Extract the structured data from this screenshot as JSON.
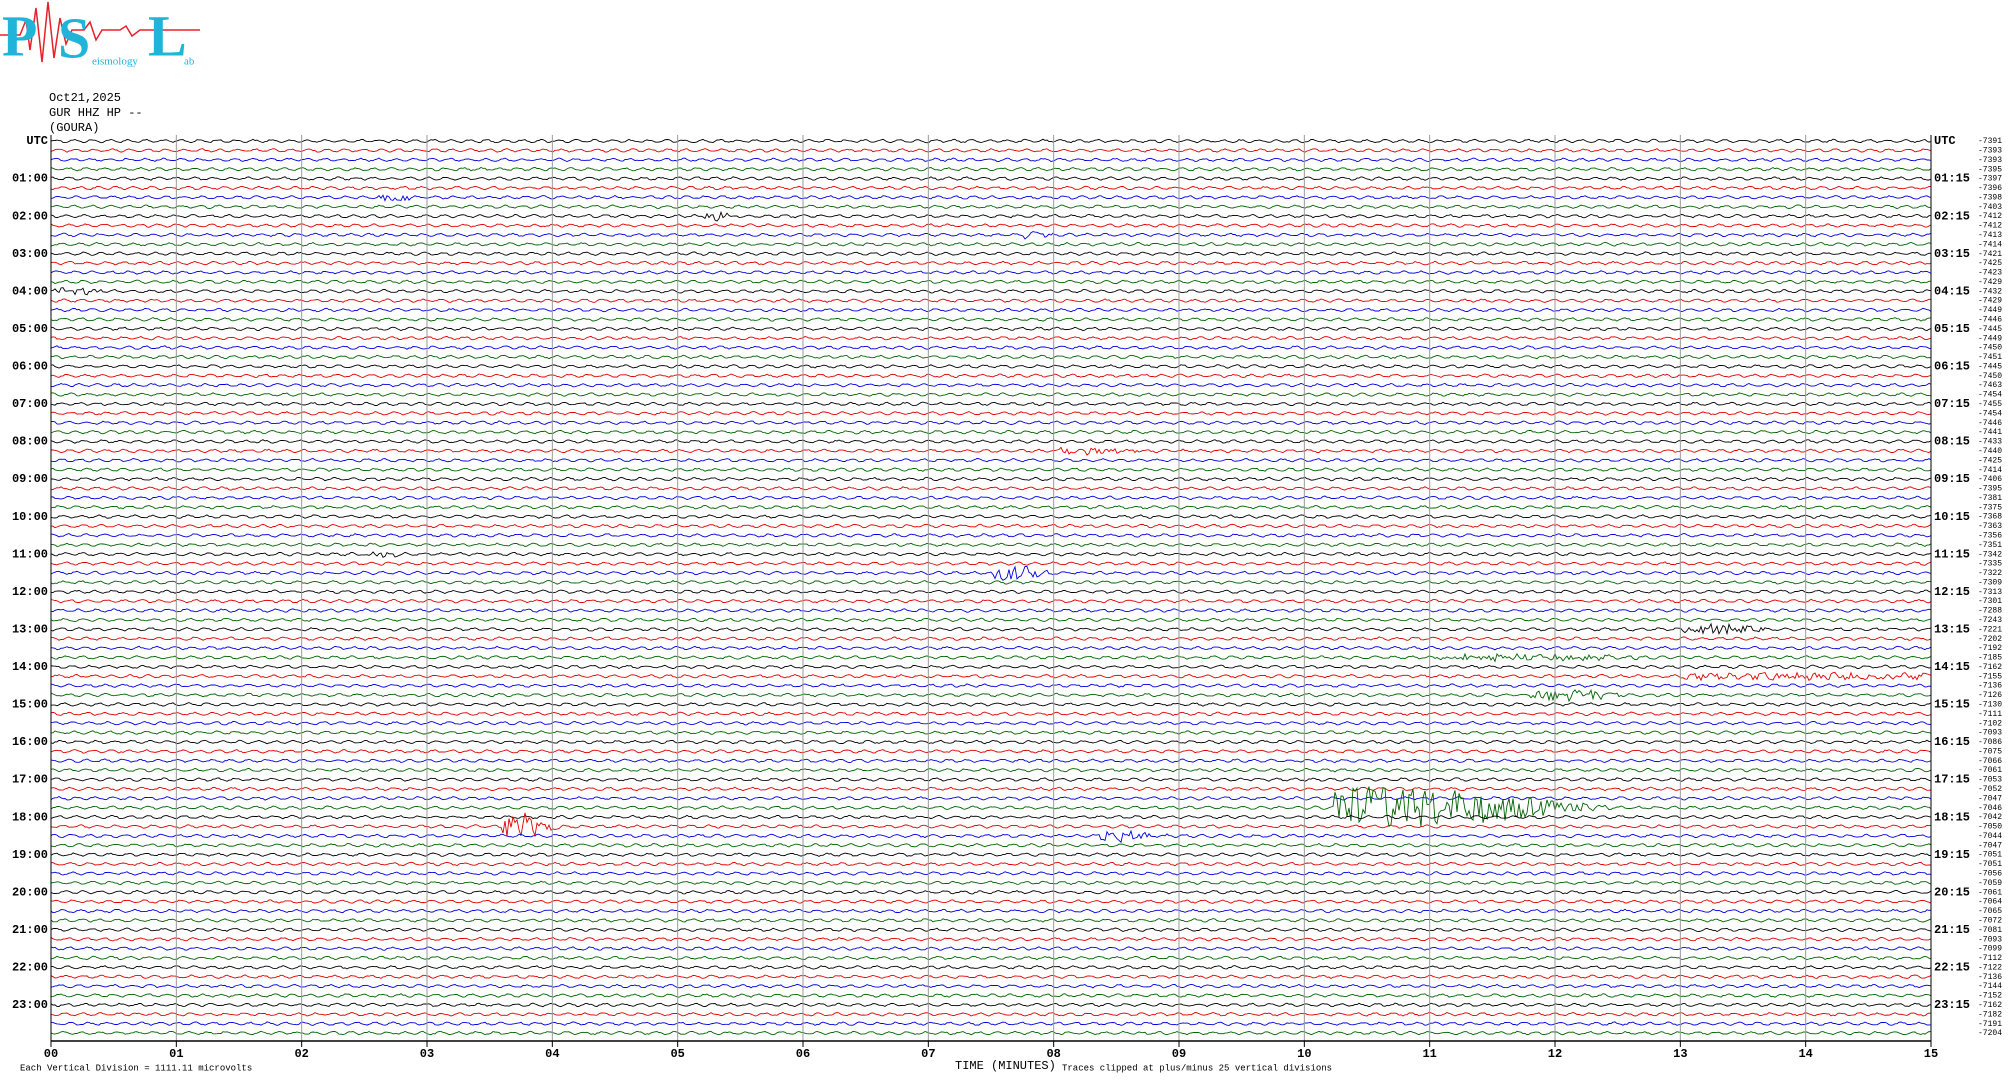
{
  "logo": {
    "letters": [
      "P",
      "S",
      "L"
    ],
    "small": [
      "eismology",
      "ab"
    ]
  },
  "chart_data": {
    "type": "helicorder",
    "date": "Oct21,2025",
    "station": "GUR HHZ HP --",
    "location": "(GOURA)",
    "xlabel": "TIME (MINUTES)",
    "scale_note": "Each Vertical Division = 1111.11 microvolts",
    "clip_note": "Traces clipped at plus/minus 25 vertical divisions",
    "xlim": [
      0,
      15
    ],
    "xticks": [
      {
        "value": 0,
        "label": "00"
      },
      {
        "value": 1,
        "label": "01"
      },
      {
        "value": 2,
        "label": "02"
      },
      {
        "value": 3,
        "label": "03"
      },
      {
        "value": 4,
        "label": "04"
      },
      {
        "value": 5,
        "label": "05"
      },
      {
        "value": 6,
        "label": "06"
      },
      {
        "value": 7,
        "label": "07"
      },
      {
        "value": 8,
        "label": "08"
      },
      {
        "value": 9,
        "label": "09"
      },
      10,
      11,
      12,
      13,
      14,
      15
    ],
    "grid": true,
    "colors": [
      "#000000",
      "#e00000",
      "#0000e0",
      "#006400"
    ],
    "left_labels": [
      "UTC",
      "01:00",
      "02:00",
      "03:00",
      "04:00",
      "05:00",
      "06:00",
      "07:00",
      "08:00",
      "09:00",
      "10:00",
      "11:00",
      "12:00",
      "13:00",
      "14:00",
      "15:00",
      "16:00",
      "17:00",
      "18:00",
      "19:00",
      "20:00",
      "21:00",
      "22:00",
      "23:00"
    ],
    "right_labels": [
      "UTC",
      "01:15",
      "02:15",
      "03:15",
      "04:15",
      "05:15",
      "06:15",
      "07:15",
      "08:15",
      "09:15",
      "10:15",
      "11:15",
      "12:15",
      "13:15",
      "14:15",
      "15:15",
      "16:15",
      "17:15",
      "18:15",
      "19:15",
      "20:15",
      "21:15",
      "22:15",
      "23:15"
    ],
    "offsets": [
      -7391,
      -7393,
      -7393,
      -7395,
      -7397,
      -7396,
      -7398,
      -7403,
      -7412,
      -7412,
      -7413,
      -7414,
      -7421,
      -7425,
      -7423,
      -7429,
      -7432,
      -7429,
      -7449,
      -7446,
      -7445,
      -7449,
      -7450,
      -7451,
      -7445,
      -7450,
      -7463,
      -7454,
      -7455,
      -7454,
      -7446,
      -7441,
      -7433,
      -7440,
      -7425,
      -7414,
      -7406,
      -7395,
      -7381,
      -7375,
      -7368,
      -7363,
      -7356,
      -7351,
      -7342,
      -7335,
      -7322,
      -7309,
      -7313,
      -7301,
      -7288,
      -7243,
      -7221,
      -7202,
      -7192,
      -7185,
      -7162,
      -7155,
      -7136,
      -7126,
      -7130,
      -7111,
      -7102,
      -7093,
      -7086,
      -7075,
      -7066,
      -7061,
      -7053,
      -7052,
      -7047,
      -7046,
      -7042,
      -7050,
      -7044,
      -7047,
      -7051,
      -7051,
      -7056,
      -7059,
      -7061,
      -7064,
      -7065,
      -7072,
      -7081,
      -7093,
      -7099,
      -7112,
      -7122,
      -7136,
      -7144,
      -7152,
      -7162,
      -7182,
      -7191,
      -7204
    ]
  }
}
